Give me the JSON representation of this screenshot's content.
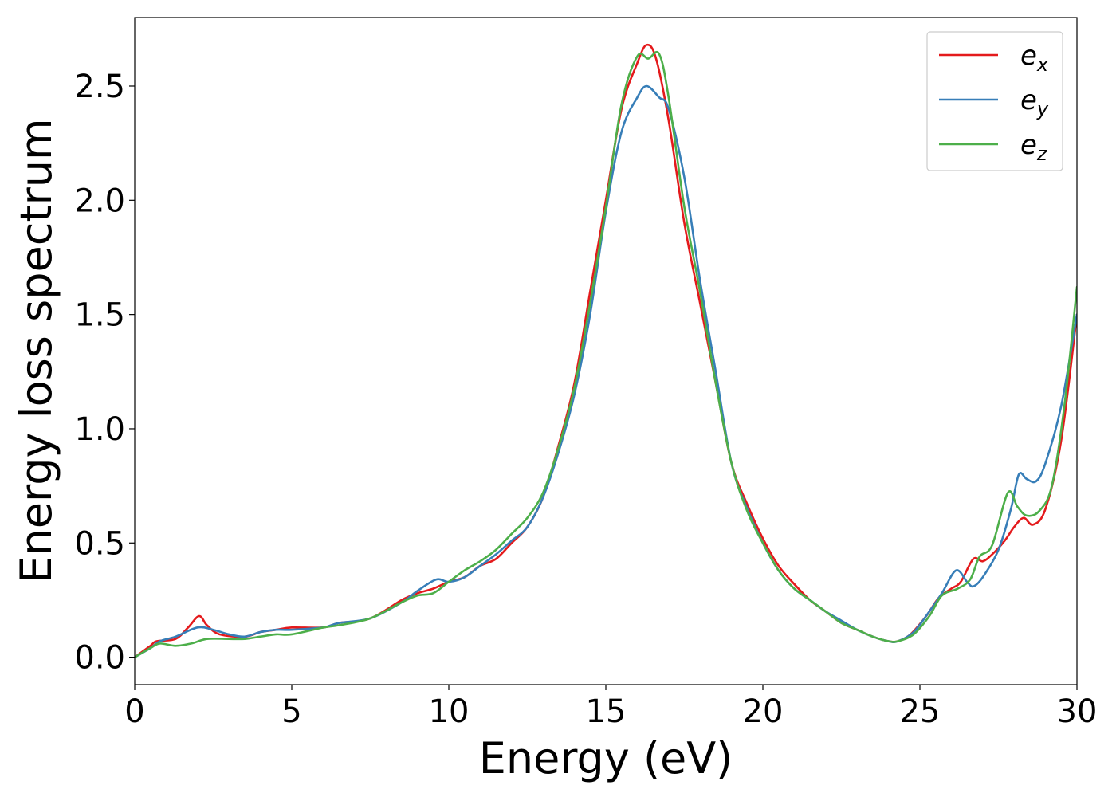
{
  "chart_data": {
    "type": "line",
    "title": "",
    "xlabel": "Energy (eV)",
    "ylabel": "Energy loss spectrum",
    "xlim": [
      0,
      30
    ],
    "ylim": [
      -0.12,
      2.8
    ],
    "xticks": [
      {
        "value": 0,
        "label": "0"
      },
      {
        "value": 5,
        "label": "5"
      },
      {
        "value": 10,
        "label": "10"
      },
      {
        "value": 15,
        "label": "15"
      },
      {
        "value": 20,
        "label": "20"
      },
      {
        "value": 25,
        "label": "25"
      },
      {
        "value": 30,
        "label": "30"
      }
    ],
    "yticks": [
      {
        "value": 0.0,
        "label": "0.0"
      },
      {
        "value": 0.5,
        "label": "0.5"
      },
      {
        "value": 1.0,
        "label": "1.0"
      },
      {
        "value": 1.5,
        "label": "1.5"
      },
      {
        "value": 2.0,
        "label": "2.0"
      },
      {
        "value": 2.5,
        "label": "2.5"
      }
    ],
    "grid": false,
    "legend_position": "top-right",
    "series": [
      {
        "name": "e",
        "sub": "x",
        "color": "#e41a1c",
        "points": [
          [
            0,
            0
          ],
          [
            0.5,
            0.05
          ],
          [
            0.7,
            0.07
          ],
          [
            1.3,
            0.08
          ],
          [
            1.7,
            0.13
          ],
          [
            2.05,
            0.18
          ],
          [
            2.3,
            0.14
          ],
          [
            2.7,
            0.1
          ],
          [
            3.5,
            0.09
          ],
          [
            4,
            0.11
          ],
          [
            4.5,
            0.12
          ],
          [
            5,
            0.13
          ],
          [
            6,
            0.13
          ],
          [
            6.5,
            0.15
          ],
          [
            7.5,
            0.17
          ],
          [
            8.5,
            0.25
          ],
          [
            9,
            0.28
          ],
          [
            9.5,
            0.3
          ],
          [
            10,
            0.33
          ],
          [
            10.5,
            0.35
          ],
          [
            11,
            0.4
          ],
          [
            11.5,
            0.43
          ],
          [
            12,
            0.5
          ],
          [
            12.5,
            0.57
          ],
          [
            13,
            0.7
          ],
          [
            13.5,
            0.93
          ],
          [
            14,
            1.2
          ],
          [
            14.5,
            1.6
          ],
          [
            15,
            2.0
          ],
          [
            15.5,
            2.4
          ],
          [
            16,
            2.6
          ],
          [
            16.3,
            2.68
          ],
          [
            16.6,
            2.62
          ],
          [
            17,
            2.35
          ],
          [
            17.5,
            1.9
          ],
          [
            18,
            1.55
          ],
          [
            18.5,
            1.2
          ],
          [
            19,
            0.85
          ],
          [
            19.5,
            0.67
          ],
          [
            20,
            0.52
          ],
          [
            20.5,
            0.4
          ],
          [
            21,
            0.32
          ],
          [
            21.5,
            0.25
          ],
          [
            22,
            0.2
          ],
          [
            22.5,
            0.15
          ],
          [
            23,
            0.12
          ],
          [
            23.5,
            0.09
          ],
          [
            24,
            0.07
          ],
          [
            24.3,
            0.07
          ],
          [
            24.7,
            0.1
          ],
          [
            25.2,
            0.18
          ],
          [
            25.6,
            0.26
          ],
          [
            26,
            0.3
          ],
          [
            26.3,
            0.33
          ],
          [
            26.7,
            0.43
          ],
          [
            27,
            0.42
          ],
          [
            27.3,
            0.45
          ],
          [
            27.7,
            0.51
          ],
          [
            28,
            0.57
          ],
          [
            28.3,
            0.61
          ],
          [
            28.6,
            0.58
          ],
          [
            29,
            0.65
          ],
          [
            29.5,
            0.95
          ],
          [
            30,
            1.5
          ]
        ]
      },
      {
        "name": "e",
        "sub": "y",
        "color": "#377eb8",
        "points": [
          [
            0,
            0
          ],
          [
            0.5,
            0.04
          ],
          [
            0.8,
            0.07
          ],
          [
            1.3,
            0.09
          ],
          [
            2,
            0.13
          ],
          [
            2.5,
            0.12
          ],
          [
            3,
            0.1
          ],
          [
            3.5,
            0.09
          ],
          [
            4,
            0.11
          ],
          [
            4.5,
            0.12
          ],
          [
            5,
            0.12
          ],
          [
            6,
            0.13
          ],
          [
            6.5,
            0.15
          ],
          [
            7.5,
            0.17
          ],
          [
            8.5,
            0.24
          ],
          [
            9,
            0.29
          ],
          [
            9.6,
            0.34
          ],
          [
            10,
            0.33
          ],
          [
            10.5,
            0.35
          ],
          [
            11,
            0.4
          ],
          [
            11.5,
            0.45
          ],
          [
            12,
            0.51
          ],
          [
            12.5,
            0.57
          ],
          [
            13,
            0.7
          ],
          [
            13.5,
            0.9
          ],
          [
            14,
            1.15
          ],
          [
            14.5,
            1.5
          ],
          [
            15,
            1.95
          ],
          [
            15.5,
            2.3
          ],
          [
            16,
            2.45
          ],
          [
            16.3,
            2.5
          ],
          [
            16.7,
            2.45
          ],
          [
            17,
            2.4
          ],
          [
            17.5,
            2.1
          ],
          [
            18,
            1.65
          ],
          [
            18.5,
            1.25
          ],
          [
            19,
            0.85
          ],
          [
            19.5,
            0.65
          ],
          [
            20,
            0.5
          ],
          [
            20.5,
            0.38
          ],
          [
            21,
            0.3
          ],
          [
            21.5,
            0.25
          ],
          [
            22,
            0.2
          ],
          [
            22.5,
            0.16
          ],
          [
            23,
            0.12
          ],
          [
            23.5,
            0.09
          ],
          [
            24,
            0.07
          ],
          [
            24.3,
            0.07
          ],
          [
            24.8,
            0.11
          ],
          [
            25.3,
            0.2
          ],
          [
            25.7,
            0.28
          ],
          [
            26.15,
            0.38
          ],
          [
            26.5,
            0.33
          ],
          [
            26.7,
            0.31
          ],
          [
            27,
            0.35
          ],
          [
            27.5,
            0.47
          ],
          [
            27.9,
            0.65
          ],
          [
            28.15,
            0.8
          ],
          [
            28.4,
            0.78
          ],
          [
            28.7,
            0.77
          ],
          [
            29,
            0.85
          ],
          [
            29.5,
            1.1
          ],
          [
            30,
            1.5
          ]
        ]
      },
      {
        "name": "e",
        "sub": "z",
        "color": "#4daf4a",
        "points": [
          [
            0,
            0
          ],
          [
            0.5,
            0.04
          ],
          [
            0.8,
            0.06
          ],
          [
            1.3,
            0.05
          ],
          [
            1.8,
            0.06
          ],
          [
            2.3,
            0.08
          ],
          [
            3,
            0.08
          ],
          [
            3.5,
            0.08
          ],
          [
            4,
            0.09
          ],
          [
            4.5,
            0.1
          ],
          [
            5,
            0.1
          ],
          [
            6,
            0.13
          ],
          [
            6.5,
            0.14
          ],
          [
            7.5,
            0.17
          ],
          [
            8.5,
            0.24
          ],
          [
            9,
            0.27
          ],
          [
            9.5,
            0.28
          ],
          [
            10,
            0.33
          ],
          [
            10.5,
            0.38
          ],
          [
            11,
            0.42
          ],
          [
            11.5,
            0.47
          ],
          [
            12,
            0.54
          ],
          [
            12.5,
            0.61
          ],
          [
            13,
            0.72
          ],
          [
            13.5,
            0.92
          ],
          [
            14,
            1.18
          ],
          [
            14.5,
            1.55
          ],
          [
            15,
            1.97
          ],
          [
            15.5,
            2.42
          ],
          [
            16,
            2.63
          ],
          [
            16.35,
            2.62
          ],
          [
            16.7,
            2.64
          ],
          [
            17,
            2.45
          ],
          [
            17.5,
            1.97
          ],
          [
            18,
            1.6
          ],
          [
            18.5,
            1.2
          ],
          [
            19,
            0.85
          ],
          [
            19.5,
            0.64
          ],
          [
            20,
            0.5
          ],
          [
            20.5,
            0.38
          ],
          [
            21,
            0.3
          ],
          [
            21.5,
            0.25
          ],
          [
            22,
            0.2
          ],
          [
            22.5,
            0.15
          ],
          [
            23,
            0.12
          ],
          [
            23.5,
            0.09
          ],
          [
            24,
            0.07
          ],
          [
            24.3,
            0.07
          ],
          [
            24.8,
            0.1
          ],
          [
            25.3,
            0.18
          ],
          [
            25.7,
            0.27
          ],
          [
            26.2,
            0.3
          ],
          [
            26.6,
            0.34
          ],
          [
            26.9,
            0.44
          ],
          [
            27.3,
            0.49
          ],
          [
            27.8,
            0.72
          ],
          [
            28.1,
            0.66
          ],
          [
            28.4,
            0.62
          ],
          [
            28.8,
            0.64
          ],
          [
            29.2,
            0.75
          ],
          [
            29.6,
            1.1
          ],
          [
            30,
            1.62
          ]
        ]
      }
    ]
  }
}
